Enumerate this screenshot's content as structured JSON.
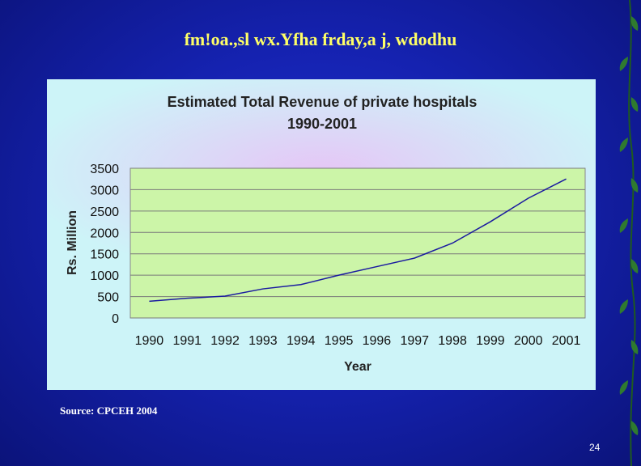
{
  "slide": {
    "title": "fm!oa.,sl wx.Yfha frday,a j, wdodhu",
    "source": "Source: CPCEH 2004",
    "page_number": "24"
  },
  "chart_data": {
    "type": "line",
    "title_line1": "Estimated Total Revenue of private hospitals",
    "title_line2": "1990-2001",
    "xlabel": "Year",
    "ylabel": "Rs. Million",
    "x": [
      "1990",
      "1991",
      "1992",
      "1993",
      "1994",
      "1995",
      "1996",
      "1997",
      "1998",
      "1999",
      "2000",
      "2001"
    ],
    "series": [
      {
        "values": [
          390,
          460,
          510,
          680,
          780,
          1000,
          1200,
          1400,
          1750,
          2250,
          2800,
          3250
        ]
      }
    ],
    "ylim": [
      0,
      3500
    ],
    "yticks": [
      0,
      500,
      1000,
      1500,
      2000,
      2500,
      3000,
      3500
    ],
    "grid": true,
    "legend": "none",
    "colors": {
      "line": "#1a1aa0",
      "plot_bg": "#ccf5a8",
      "grid": "#7a7a7a"
    }
  }
}
